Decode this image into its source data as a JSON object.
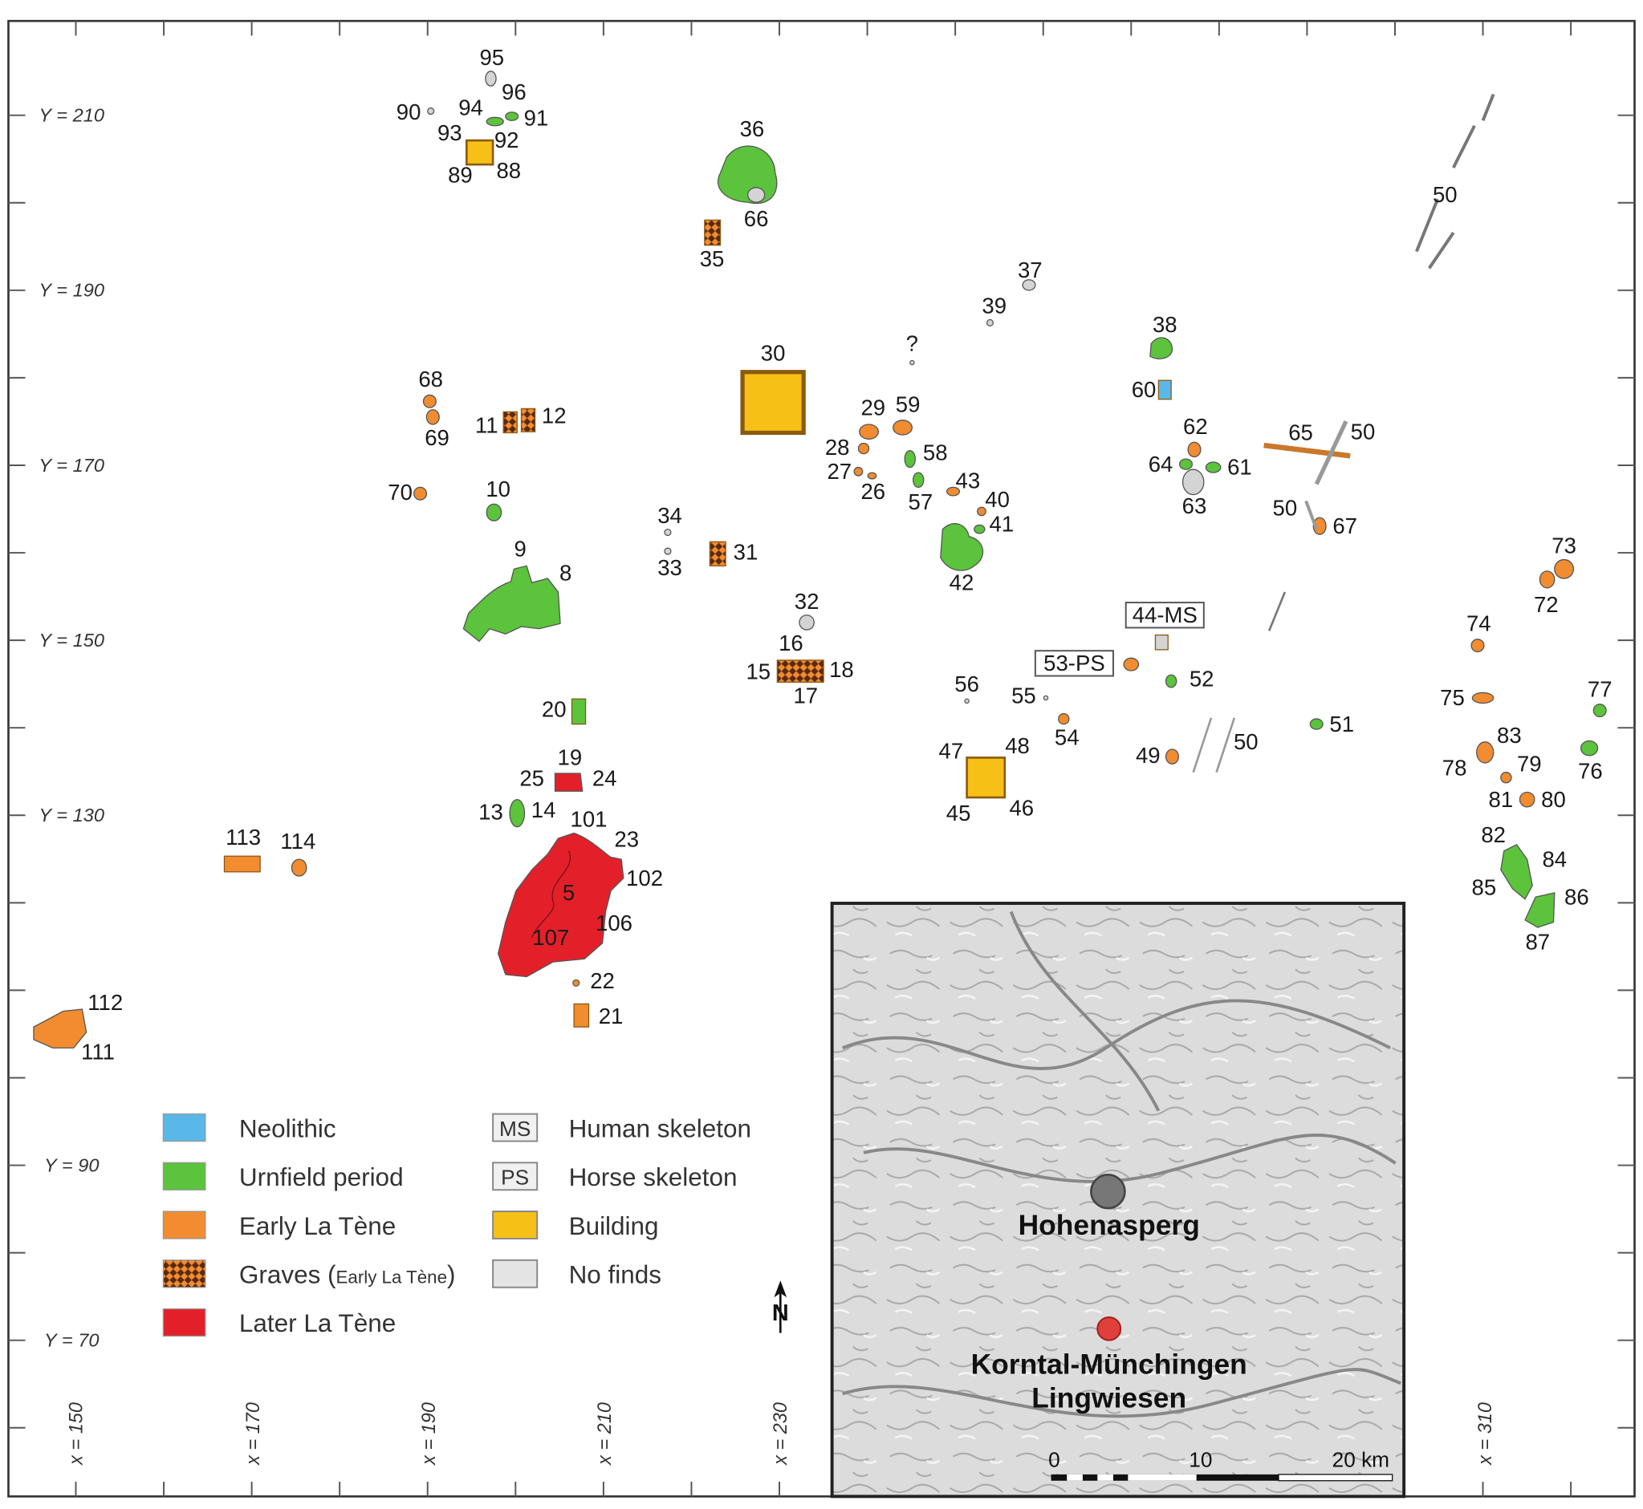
{
  "axes": {
    "y_labels": [
      "Y = 210",
      "Y = 190",
      "Y = 170",
      "Y = 150",
      "Y = 130",
      "Y = 90",
      "Y = 70"
    ],
    "x_labels": [
      "x = 150",
      "x = 170",
      "x = 190",
      "x = 210",
      "x = 230",
      "x = 310"
    ]
  },
  "sites": [
    "95",
    "96",
    "90",
    "94",
    "91",
    "93",
    "92",
    "89",
    "88",
    "36",
    "66",
    "35",
    "37",
    "39",
    "50",
    "38",
    "30",
    "?",
    "60",
    "68",
    "69",
    "11",
    "12",
    "29",
    "59",
    "62",
    "65",
    "50",
    "28",
    "58",
    "64",
    "61",
    "27",
    "26",
    "43",
    "40",
    "57",
    "70",
    "10",
    "63",
    "50",
    "67",
    "34",
    "41",
    "33",
    "31",
    "9",
    "8",
    "42",
    "73",
    "72",
    "32",
    "44-MS",
    "74",
    "53-PS",
    "16",
    "15",
    "18",
    "17",
    "52",
    "56",
    "55",
    "77",
    "75",
    "20",
    "51",
    "54",
    "47",
    "48",
    "49",
    "50",
    "83",
    "19",
    "25",
    "24",
    "78",
    "79",
    "76",
    "13",
    "14",
    "45",
    "46",
    "81",
    "80",
    "101",
    "113",
    "114",
    "23",
    "82",
    "84",
    "102",
    "5",
    "85",
    "86",
    "106",
    "107",
    "87",
    "22",
    "112",
    "21",
    "111"
  ],
  "legend": {
    "periods": [
      {
        "label": "Neolithic"
      },
      {
        "label": "Urnfield period"
      },
      {
        "label": "Early La Tène"
      },
      {
        "label_parts": [
          "Graves (",
          "Early La Tène",
          ")"
        ]
      },
      {
        "label": "Later La Tène"
      }
    ],
    "other": [
      {
        "code": "MS",
        "label": "Human skeleton"
      },
      {
        "code": "PS",
        "label": "Horse skeleton"
      },
      {
        "label": "Building"
      },
      {
        "label": "No finds"
      }
    ]
  },
  "north": "N",
  "inset": {
    "places": [
      "Hohenasperg",
      "Korntal-Münchingen",
      "Lingwiesen"
    ],
    "scale_labels": [
      "0",
      "10",
      "20 km"
    ]
  }
}
